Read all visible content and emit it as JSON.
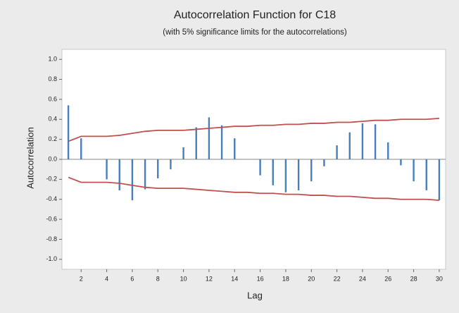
{
  "chart_data": {
    "type": "bar",
    "title": "Autocorrelation Function for C18",
    "subtitle": "(with 5% significance limits for the autocorrelations)",
    "x_label": "Lag",
    "y_label": "Autocorrelation",
    "x": [
      1,
      2,
      3,
      4,
      5,
      6,
      7,
      8,
      9,
      10,
      11,
      12,
      13,
      14,
      15,
      16,
      17,
      18,
      19,
      20,
      21,
      22,
      23,
      24,
      25,
      26,
      27,
      28,
      29,
      30
    ],
    "values": [
      0.54,
      0.21,
      0.0,
      -0.2,
      -0.31,
      -0.41,
      -0.3,
      -0.19,
      -0.1,
      0.12,
      0.32,
      0.42,
      0.34,
      0.21,
      0.0,
      -0.16,
      -0.26,
      -0.33,
      -0.31,
      -0.22,
      -0.07,
      0.14,
      0.27,
      0.36,
      0.35,
      0.17,
      -0.06,
      -0.22,
      -0.31,
      -0.41
    ],
    "color": "#4a7ebb",
    "upper_limit": [
      0.18,
      0.23,
      0.23,
      0.23,
      0.24,
      0.26,
      0.28,
      0.29,
      0.29,
      0.29,
      0.3,
      0.31,
      0.32,
      0.33,
      0.33,
      0.34,
      0.34,
      0.35,
      0.35,
      0.36,
      0.36,
      0.37,
      0.37,
      0.38,
      0.39,
      0.39,
      0.4,
      0.4,
      0.4,
      0.41
    ],
    "lower_limit": [
      -0.18,
      -0.23,
      -0.23,
      -0.23,
      -0.24,
      -0.26,
      -0.28,
      -0.29,
      -0.29,
      -0.29,
      -0.3,
      -0.31,
      -0.32,
      -0.33,
      -0.33,
      -0.34,
      -0.34,
      -0.35,
      -0.35,
      -0.36,
      -0.36,
      -0.37,
      -0.37,
      -0.38,
      -0.39,
      -0.39,
      -0.4,
      -0.4,
      -0.4,
      -0.41
    ],
    "limit_color": "#c0504d",
    "xlim": [
      0.5,
      30.5
    ],
    "xticks": [
      2,
      4,
      6,
      8,
      10,
      12,
      14,
      16,
      18,
      20,
      22,
      24,
      26,
      28,
      30
    ],
    "ylim": [
      -1.1,
      1.1
    ],
    "yticks": [
      {
        "value": 1,
        "label": "1.0"
      },
      0.8,
      0.6,
      0.4,
      0.2,
      {
        "value": 0,
        "label": "0.0"
      },
      -0.2,
      -0.4,
      -0.6,
      -0.8,
      {
        "value": -1,
        "label": "-1.0"
      }
    ]
  }
}
